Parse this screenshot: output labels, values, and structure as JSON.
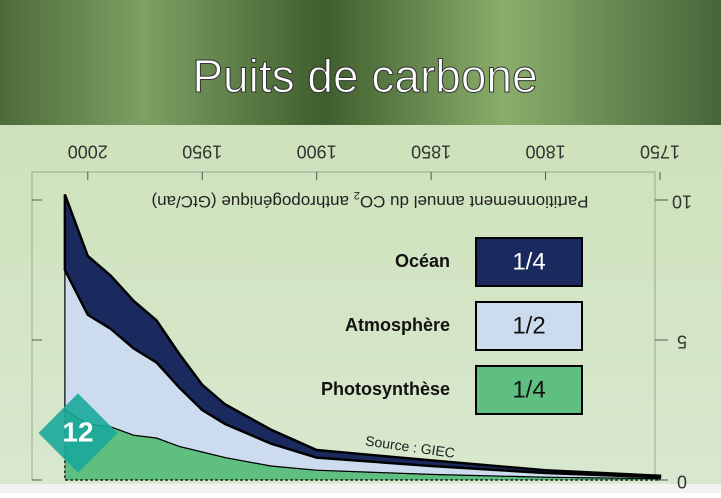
{
  "slide": {
    "title": "Puits de carbone",
    "number": "12"
  },
  "chart_data": {
    "type": "area",
    "stacked": true,
    "ylabel": [
      "Partitionnement annuel du CO",
      "2",
      " anthropogénique (GtC/an)"
    ],
    "annotation": "Source : GIEC",
    "x": [
      1750,
      1800,
      1850,
      1900,
      1920,
      1940,
      1950,
      1960,
      1970,
      1980,
      1990,
      2000,
      2010
    ],
    "series": [
      {
        "name": "Photosynthèse",
        "share": "1/4",
        "color": "#5fbf80",
        "values": [
          0.05,
          0.1,
          0.2,
          0.35,
          0.5,
          0.8,
          1.0,
          1.2,
          1.5,
          1.6,
          1.9,
          2.0,
          2.5
        ]
      },
      {
        "name": "Atmosphère",
        "share": "1/2",
        "color": "#cddbee",
        "values": [
          0.05,
          0.15,
          0.3,
          0.45,
          0.8,
          1.2,
          1.5,
          2.1,
          2.7,
          3.1,
          3.5,
          3.9,
          5.0
        ]
      },
      {
        "name": "Océan",
        "share": "1/4",
        "color": "#1b2a5e",
        "values": [
          0.05,
          0.1,
          0.2,
          0.27,
          0.5,
          0.7,
          0.9,
          1.2,
          1.5,
          1.7,
          1.9,
          2.1,
          2.7
        ]
      }
    ],
    "xlim": [
      1750,
      2020
    ],
    "xticks": [
      1750,
      1800,
      1850,
      1900,
      1950,
      2000
    ],
    "ylim": [
      0,
      11
    ],
    "yticks": [
      0,
      5,
      10
    ]
  }
}
